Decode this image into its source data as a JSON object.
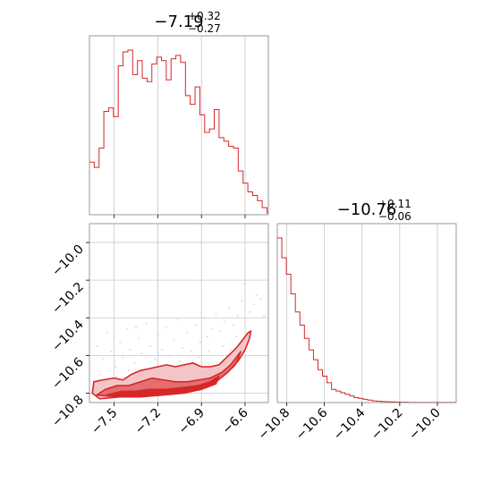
{
  "chart_data": [
    {
      "type": "histogram",
      "panel": "marginal-x",
      "title_value": "−7.19",
      "title_sup": "+0.32",
      "title_sub": "−0.27",
      "xlim": [
        -7.67,
        -6.44
      ],
      "grid": true,
      "color": "#d62728",
      "x_ticks": [
        -7.5,
        -7.2,
        -6.9,
        -6.6
      ],
      "x_tick_labels": [
        "−7.5",
        "−7.2",
        "−6.9",
        "−6.6"
      ],
      "bin_edges": [
        -7.67,
        -7.637,
        -7.604,
        -7.571,
        -7.538,
        -7.505,
        -7.472,
        -7.439,
        -7.406,
        -7.373,
        -7.34,
        -7.307,
        -7.274,
        -7.241,
        -7.208,
        -7.175,
        -7.142,
        -7.109,
        -7.076,
        -7.043,
        -7.01,
        -6.977,
        -6.944,
        -6.911,
        -6.878,
        -6.845,
        -6.812,
        -6.779,
        -6.746,
        -6.713,
        -6.68,
        -6.647,
        -6.614,
        -6.581,
        -6.548,
        -6.515,
        -6.482,
        -6.449,
        -6.44
      ],
      "counts": [
        0.3,
        0.27,
        0.38,
        0.59,
        0.61,
        0.56,
        0.85,
        0.93,
        0.94,
        0.8,
        0.88,
        0.78,
        0.76,
        0.86,
        0.9,
        0.88,
        0.77,
        0.89,
        0.91,
        0.87,
        0.68,
        0.63,
        0.73,
        0.57,
        0.47,
        0.49,
        0.6,
        0.44,
        0.42,
        0.39,
        0.38,
        0.25,
        0.18,
        0.13,
        0.11,
        0.08,
        0.04,
        0.01
      ]
    },
    {
      "type": "histogram",
      "panel": "marginal-y",
      "title_value": "−10.76",
      "title_sup": "+0.11",
      "title_sub": "−0.06",
      "xlim": [
        -10.85,
        -9.9
      ],
      "grid": true,
      "color": "#d62728",
      "x_ticks": [
        -10.8,
        -10.6,
        -10.4,
        -10.2,
        -10.0
      ],
      "x_tick_labels": [
        "−10.8",
        "−10.6",
        "−10.4",
        "−10.2",
        "−10.0"
      ],
      "bin_edges": [
        -10.85,
        -10.826,
        -10.802,
        -10.778,
        -10.754,
        -10.73,
        -10.706,
        -10.682,
        -10.658,
        -10.634,
        -10.61,
        -10.586,
        -10.562,
        -10.538,
        -10.514,
        -10.49,
        -10.466,
        -10.442,
        -10.418,
        -10.394,
        -10.37,
        -10.346,
        -10.322,
        -10.298,
        -10.274,
        -10.25,
        -10.226,
        -10.202,
        -10.178,
        -10.154,
        -10.13,
        -9.9
      ],
      "counts": [
        1.0,
        0.88,
        0.78,
        0.66,
        0.55,
        0.47,
        0.39,
        0.32,
        0.26,
        0.2,
        0.16,
        0.12,
        0.08,
        0.07,
        0.06,
        0.05,
        0.04,
        0.03,
        0.025,
        0.02,
        0.015,
        0.01,
        0.008,
        0.006,
        0.005,
        0.004,
        0.003,
        0.002,
        0.002,
        0.001,
        0.001
      ]
    },
    {
      "type": "contour",
      "panel": "joint",
      "xlim": [
        -7.67,
        -6.44
      ],
      "ylim": [
        -10.85,
        -9.9
      ],
      "grid": true,
      "color": "#d62728",
      "x_ticks": [
        -7.5,
        -7.2,
        -6.9,
        -6.6
      ],
      "x_tick_labels": [
        "−7.5",
        "−7.2",
        "−6.9",
        "−6.6"
      ],
      "y_ticks": [
        -10.0,
        -10.2,
        -10.4,
        -10.6,
        -10.8
      ],
      "y_tick_labels": [
        "−10.0",
        "−10.2",
        "−10.4",
        "−10.6",
        "−10.8"
      ],
      "contour_levels": [
        {
          "name": "outer",
          "fill": "#f4c5c6",
          "points": [
            [
              -7.65,
              -10.8
            ],
            [
              -7.64,
              -10.74
            ],
            [
              -7.58,
              -10.73
            ],
            [
              -7.5,
              -10.72
            ],
            [
              -7.44,
              -10.73
            ],
            [
              -7.38,
              -10.7
            ],
            [
              -7.32,
              -10.68
            ],
            [
              -7.26,
              -10.67
            ],
            [
              -7.2,
              -10.66
            ],
            [
              -7.14,
              -10.65
            ],
            [
              -7.08,
              -10.66
            ],
            [
              -7.02,
              -10.65
            ],
            [
              -6.96,
              -10.64
            ],
            [
              -6.9,
              -10.66
            ],
            [
              -6.84,
              -10.66
            ],
            [
              -6.78,
              -10.65
            ],
            [
              -6.74,
              -10.62
            ],
            [
              -6.7,
              -10.59
            ],
            [
              -6.66,
              -10.56
            ],
            [
              -6.62,
              -10.52
            ],
            [
              -6.58,
              -10.48
            ],
            [
              -6.56,
              -10.47
            ],
            [
              -6.57,
              -10.51
            ],
            [
              -6.6,
              -10.57
            ],
            [
              -6.64,
              -10.62
            ],
            [
              -6.68,
              -10.66
            ],
            [
              -6.74,
              -10.7
            ],
            [
              -6.82,
              -10.74
            ],
            [
              -6.92,
              -10.77
            ],
            [
              -7.02,
              -10.79
            ],
            [
              -7.14,
              -10.8
            ],
            [
              -7.3,
              -10.81
            ],
            [
              -7.46,
              -10.82
            ],
            [
              -7.6,
              -10.83
            ]
          ]
        },
        {
          "name": "middle",
          "fill": "#e46e70",
          "points": [
            [
              -7.62,
              -10.81
            ],
            [
              -7.56,
              -10.78
            ],
            [
              -7.48,
              -10.76
            ],
            [
              -7.4,
              -10.76
            ],
            [
              -7.32,
              -10.74
            ],
            [
              -7.24,
              -10.72
            ],
            [
              -7.16,
              -10.73
            ],
            [
              -7.08,
              -10.74
            ],
            [
              -7.0,
              -10.74
            ],
            [
              -6.92,
              -10.73
            ],
            [
              -6.84,
              -10.72
            ],
            [
              -6.76,
              -10.69
            ],
            [
              -6.7,
              -10.65
            ],
            [
              -6.66,
              -10.61
            ],
            [
              -6.63,
              -10.58
            ],
            [
              -6.66,
              -10.64
            ],
            [
              -6.72,
              -10.69
            ],
            [
              -6.8,
              -10.74
            ],
            [
              -6.9,
              -10.77
            ],
            [
              -7.02,
              -10.79
            ],
            [
              -7.16,
              -10.8
            ],
            [
              -7.32,
              -10.81
            ],
            [
              -7.48,
              -10.82
            ]
          ]
        },
        {
          "name": "inner",
          "fill": "#d62728",
          "points": [
            [
              -7.55,
              -10.81
            ],
            [
              -7.45,
              -10.79
            ],
            [
              -7.36,
              -10.79
            ],
            [
              -7.26,
              -10.78
            ],
            [
              -7.14,
              -10.78
            ],
            [
              -7.02,
              -10.77
            ],
            [
              -6.92,
              -10.76
            ],
            [
              -6.84,
              -10.74
            ],
            [
              -6.78,
              -10.71
            ],
            [
              -6.8,
              -10.75
            ],
            [
              -6.9,
              -10.78
            ],
            [
              -7.02,
              -10.8
            ],
            [
              -7.16,
              -10.81
            ],
            [
              -7.32,
              -10.82
            ],
            [
              -7.46,
              -10.82
            ]
          ]
        }
      ],
      "scatter_points": [
        [
          -7.62,
          -10.55
        ],
        [
          -7.58,
          -10.62
        ],
        [
          -7.55,
          -10.48
        ],
        [
          -7.52,
          -10.58
        ],
        [
          -7.49,
          -10.66
        ],
        [
          -7.46,
          -10.53
        ],
        [
          -7.44,
          -10.61
        ],
        [
          -7.41,
          -10.46
        ],
        [
          -7.39,
          -10.57
        ],
        [
          -7.36,
          -10.64
        ],
        [
          -7.33,
          -10.51
        ],
        [
          -7.31,
          -10.59
        ],
        [
          -7.28,
          -10.43
        ],
        [
          -7.25,
          -10.55
        ],
        [
          -7.22,
          -10.62
        ],
        [
          -7.2,
          -10.49
        ],
        [
          -7.17,
          -10.57
        ],
        [
          -7.14,
          -10.45
        ],
        [
          -7.12,
          -10.6
        ],
        [
          -7.09,
          -10.52
        ],
        [
          -7.06,
          -10.41
        ],
        [
          -7.03,
          -10.56
        ],
        [
          -7.0,
          -10.48
        ],
        [
          -6.97,
          -10.58
        ],
        [
          -6.94,
          -10.44
        ],
        [
          -6.91,
          -10.53
        ],
        [
          -6.88,
          -10.4
        ],
        [
          -6.86,
          -10.5
        ],
        [
          -6.83,
          -10.46
        ],
        [
          -6.8,
          -10.38
        ],
        [
          -6.77,
          -10.47
        ],
        [
          -6.74,
          -10.42
        ],
        [
          -6.71,
          -10.35
        ],
        [
          -6.68,
          -10.44
        ],
        [
          -6.65,
          -10.39
        ],
        [
          -6.62,
          -10.31
        ],
        [
          -6.6,
          -10.22
        ],
        [
          -6.57,
          -10.37
        ],
        [
          -6.54,
          -10.33
        ],
        [
          -6.52,
          -10.28
        ],
        [
          -6.49,
          -10.3
        ],
        [
          -6.47,
          -10.39
        ],
        [
          -7.4,
          -10.68
        ],
        [
          -7.3,
          -10.69
        ],
        [
          -7.1,
          -10.69
        ],
        [
          -6.95,
          -10.69
        ],
        [
          -6.85,
          -10.58
        ],
        [
          -6.75,
          -10.55
        ],
        [
          -6.66,
          -10.5
        ],
        [
          -7.6,
          -10.7
        ],
        [
          -7.35,
          -10.45
        ],
        [
          -7.05,
          -10.63
        ],
        [
          -6.92,
          -10.61
        ],
        [
          -6.7,
          -10.57
        ],
        [
          -7.48,
          -10.71
        ],
        [
          -7.18,
          -10.68
        ]
      ]
    }
  ]
}
